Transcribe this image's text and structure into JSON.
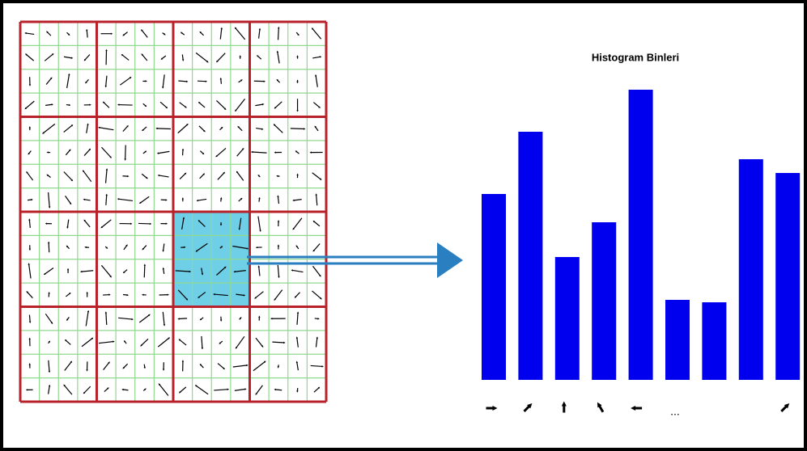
{
  "histogram": {
    "title": "Histogram Binleri",
    "values": [
      230,
      307,
      152,
      195,
      359,
      99,
      96,
      273,
      256
    ],
    "ylim": [
      0,
      400
    ],
    "color": "#0000ee",
    "bin_labels": [
      null,
      null,
      null,
      null,
      null,
      "...",
      null,
      null,
      null
    ]
  }
}
